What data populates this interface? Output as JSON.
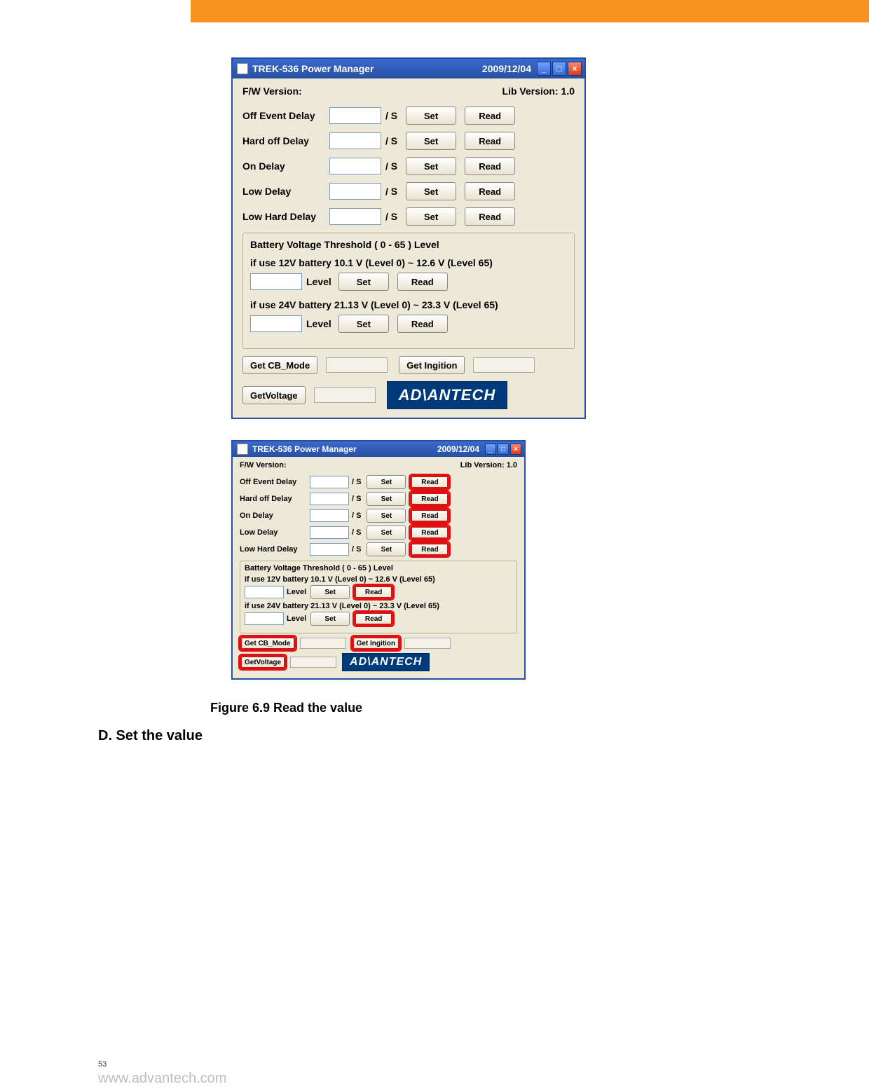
{
  "topbar": {
    "bg": "#f7941d"
  },
  "titlebar": {
    "app_title": "TREK-536 Power Manager",
    "date": "2009/12/04"
  },
  "top_labels": {
    "fw": "F/W Version:",
    "lib": "Lib Version: 1.0"
  },
  "delays": [
    {
      "name": "Off Event  Delay"
    },
    {
      "name": "Hard off  Delay"
    },
    {
      "name": "On  Delay"
    },
    {
      "name": "Low  Delay"
    },
    {
      "name": "Low Hard  Delay"
    }
  ],
  "unit": "/ S",
  "btns": {
    "set": "Set",
    "read": "Read"
  },
  "group": {
    "title": "Battery Voltage Threshold  ( 0 - 65 ) Level",
    "sub12": "if use 12V battery      10.1 V (Level 0)  ~  12.6 V (Level 65)",
    "sub24": "if use 24V battery      21.13 V (Level 0)  ~  23.3 V (Level 65)",
    "level": "Level"
  },
  "bottom": {
    "getcb": "Get CB_Mode",
    "getign": "Get Ingition",
    "getvolt": "GetVoltage",
    "brand": "AD\\ANTECH"
  },
  "caption": "Figure 6.9 Read the value",
  "section_d": "D. Set the value",
  "page_num": "53",
  "footer": "www.advantech.com"
}
